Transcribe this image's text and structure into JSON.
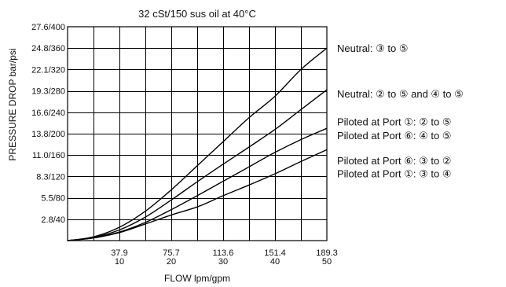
{
  "chart_data": {
    "type": "line",
    "title": "32 cSt/150 sus oil at 40°C",
    "xlabel": "FLOW lpm/gpm",
    "ylabel": "PRESSURE DROP bar/psi",
    "xlim": [
      0,
      50
    ],
    "ylim": [
      0,
      400
    ],
    "grid": true,
    "x_ticks": [
      {
        "lpm": "37.9",
        "gpm": "10",
        "value": 10
      },
      {
        "lpm": "75.7",
        "gpm": "20",
        "value": 20
      },
      {
        "lpm": "113.6",
        "gpm": "30",
        "value": 30
      },
      {
        "lpm": "151.4",
        "gpm": "40",
        "value": 40
      },
      {
        "lpm": "189.3",
        "gpm": "50",
        "value": 50
      }
    ],
    "y_ticks": [
      {
        "label": "2.8/40",
        "value": 40
      },
      {
        "label": "5.5/80",
        "value": 80
      },
      {
        "label": "8.3/120",
        "value": 120
      },
      {
        "label": "11.0/160",
        "value": 160
      },
      {
        "label": "13.8/200",
        "value": 200
      },
      {
        "label": "16.6/240",
        "value": 240
      },
      {
        "label": "19.3/280",
        "value": 280
      },
      {
        "label": "22.1/320",
        "value": 320
      },
      {
        "label": "24.8/360",
        "value": 360
      },
      {
        "label": "27.6/400",
        "value": 400
      }
    ],
    "x": [
      0,
      5,
      10,
      15,
      20,
      25,
      30,
      35,
      40,
      45,
      50
    ],
    "series": [
      {
        "values": [
          0,
          7,
          25,
          55,
          95,
          140,
          185,
          230,
          270,
          320,
          360
        ]
      },
      {
        "values": [
          0,
          6,
          20,
          44,
          76,
          110,
          143,
          175,
          208,
          245,
          282
        ]
      },
      {
        "values": [
          0,
          5,
          16,
          34,
          58,
          84,
          111,
          138,
          165,
          189,
          210
        ]
      },
      {
        "values": [
          0,
          5,
          15,
          31,
          48,
          63,
          84,
          104,
          125,
          148,
          170
        ]
      }
    ],
    "annotations": [
      {
        "text": "Neutral: ③ to ⑤",
        "y_value": 360
      },
      {
        "text": "Neutral: ② to ⑤ and ④ to ⑤",
        "y_value": 275
      },
      {
        "text": "Piloted at Port ①: ② to ⑤",
        "y_value": 223
      },
      {
        "text": "Piloted at Port ⑥: ④ to ⑤",
        "y_value": 197
      },
      {
        "text": "Piloted at Port ⑥: ③ to ②",
        "y_value": 150
      },
      {
        "text": "Piloted at Port ①: ③ to ④",
        "y_value": 126
      }
    ]
  }
}
